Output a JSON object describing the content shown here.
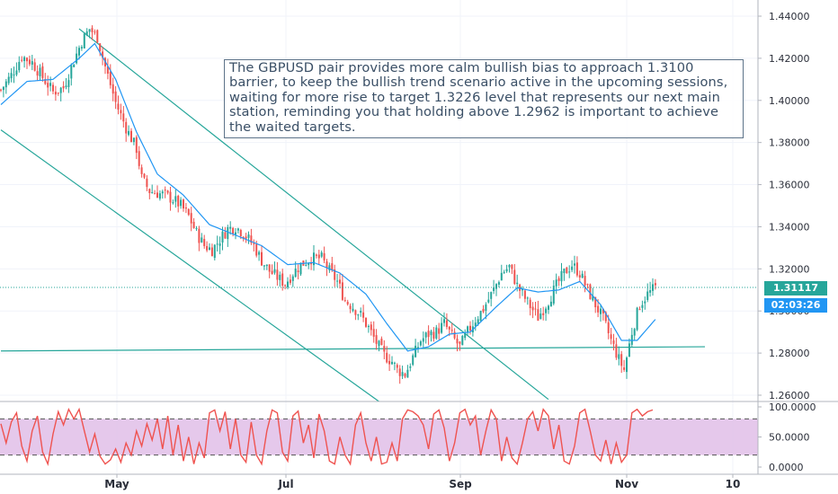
{
  "annotation": "The GBPUSD pair provides more calm bullish bias to approach 1.3100 barrier, to keep the bullish trend scenario active in the upcoming sessions, waiting for more rise to target 1.3226 level that represents our next main station, reminding you that holding above 1.2962 is important to achieve the waited targets.",
  "price_badge": {
    "price": "1.31117",
    "countdown": "02:03:26",
    "color": "#26a69a",
    "timer_color": "#2196f3"
  },
  "colors": {
    "up_candle": "#26a69a",
    "down_candle": "#ef5350",
    "ma_line": "#2196f3",
    "channel": "#26a69a",
    "rsi_line": "#ef5350",
    "rsi_band": "#e1bee7"
  },
  "chart_data": [
    {
      "type": "candlestick",
      "symbol": "GBPUSD",
      "x_ticks": [
        "May",
        "Jul",
        "Sep",
        "Nov",
        "10"
      ],
      "y_ticks": [
        "1.26000",
        "1.28000",
        "1.30000",
        "1.32000",
        "1.34000",
        "1.36000",
        "1.38000",
        "1.40000",
        "1.42000",
        "1.44000"
      ],
      "ylim": [
        1.255,
        1.445
      ],
      "last_price": 1.31117,
      "close_path": [
        [
          0,
          1.405
        ],
        [
          4,
          1.412
        ],
        [
          8,
          1.421
        ],
        [
          12,
          1.418
        ],
        [
          16,
          1.411
        ],
        [
          20,
          1.404
        ],
        [
          24,
          1.406
        ],
        [
          28,
          1.419
        ],
        [
          31,
          1.428
        ],
        [
          34,
          1.434
        ],
        [
          37,
          1.43
        ],
        [
          40,
          1.416
        ],
        [
          44,
          1.399
        ],
        [
          48,
          1.387
        ],
        [
          52,
          1.377
        ],
        [
          54,
          1.363
        ],
        [
          57,
          1.357
        ],
        [
          60,
          1.356
        ],
        [
          63,
          1.355
        ],
        [
          66,
          1.353
        ],
        [
          69,
          1.35
        ],
        [
          72,
          1.345
        ],
        [
          75,
          1.337
        ],
        [
          78,
          1.331
        ],
        [
          81,
          1.329
        ],
        [
          84,
          1.334
        ],
        [
          87,
          1.339
        ],
        [
          90,
          1.34
        ],
        [
          93,
          1.337
        ],
        [
          97,
          1.331
        ],
        [
          100,
          1.324
        ],
        [
          103,
          1.319
        ],
        [
          106,
          1.316
        ],
        [
          109,
          1.313
        ],
        [
          112,
          1.318
        ],
        [
          115,
          1.322
        ],
        [
          119,
          1.325
        ],
        [
          123,
          1.325
        ],
        [
          126,
          1.319
        ],
        [
          129,
          1.314
        ],
        [
          132,
          1.305
        ],
        [
          135,
          1.302
        ],
        [
          138,
          1.298
        ],
        [
          141,
          1.292
        ],
        [
          144,
          1.285
        ],
        [
          147,
          1.279
        ],
        [
          150,
          1.276
        ],
        [
          152,
          1.272
        ],
        [
          155,
          1.27
        ],
        [
          158,
          1.278
        ],
        [
          161,
          1.286
        ],
        [
          164,
          1.289
        ],
        [
          167,
          1.29
        ],
        [
          170,
          1.294
        ],
        [
          173,
          1.288
        ],
        [
          176,
          1.283
        ],
        [
          179,
          1.29
        ],
        [
          182,
          1.296
        ],
        [
          185,
          1.301
        ],
        [
          189,
          1.31
        ],
        [
          192,
          1.318
        ],
        [
          195,
          1.321
        ],
        [
          198,
          1.312
        ],
        [
          202,
          1.304
        ],
        [
          206,
          1.297
        ],
        [
          210,
          1.305
        ],
        [
          213,
          1.312
        ],
        [
          216,
          1.318
        ],
        [
          219,
          1.322
        ],
        [
          222,
          1.318
        ],
        [
          225,
          1.31
        ],
        [
          228,
          1.303
        ],
        [
          231,
          1.296
        ],
        [
          234,
          1.286
        ],
        [
          237,
          1.277
        ],
        [
          239,
          1.272
        ],
        [
          242,
          1.29
        ],
        [
          245,
          1.303
        ],
        [
          248,
          1.308
        ],
        [
          251,
          1.311
        ]
      ],
      "moving_average": [
        [
          0,
          1.398
        ],
        [
          10,
          1.409
        ],
        [
          20,
          1.41
        ],
        [
          30,
          1.42
        ],
        [
          36,
          1.427
        ],
        [
          44,
          1.41
        ],
        [
          52,
          1.385
        ],
        [
          60,
          1.365
        ],
        [
          70,
          1.355
        ],
        [
          80,
          1.341
        ],
        [
          90,
          1.336
        ],
        [
          100,
          1.331
        ],
        [
          110,
          1.322
        ],
        [
          120,
          1.323
        ],
        [
          130,
          1.318
        ],
        [
          140,
          1.308
        ],
        [
          148,
          1.294
        ],
        [
          156,
          1.281
        ],
        [
          164,
          1.283
        ],
        [
          172,
          1.289
        ],
        [
          180,
          1.29
        ],
        [
          190,
          1.302
        ],
        [
          198,
          1.311
        ],
        [
          206,
          1.309
        ],
        [
          214,
          1.31
        ],
        [
          222,
          1.314
        ],
        [
          230,
          1.303
        ],
        [
          238,
          1.286
        ],
        [
          244,
          1.286
        ],
        [
          251,
          1.296
        ]
      ],
      "trendlines": [
        {
          "from": [
            30,
            1.434
          ],
          "to": [
            210,
            1.258
          ]
        },
        {
          "from": [
            0,
            1.386
          ],
          "to": [
            145,
            1.257
          ]
        },
        {
          "from": [
            0,
            1.281
          ],
          "to": [
            270,
            1.283
          ]
        }
      ]
    },
    {
      "type": "line",
      "indicator": "stochastic",
      "y_ticks": [
        "0.0000",
        "50.0000",
        "100.0000"
      ],
      "ylim": [
        0,
        100
      ],
      "band": [
        20,
        80
      ],
      "values": [
        [
          0,
          72
        ],
        [
          2,
          40
        ],
        [
          4,
          75
        ],
        [
          6,
          90
        ],
        [
          8,
          35
        ],
        [
          10,
          10
        ],
        [
          12,
          60
        ],
        [
          14,
          85
        ],
        [
          16,
          25
        ],
        [
          18,
          5
        ],
        [
          20,
          55
        ],
        [
          22,
          92
        ],
        [
          24,
          70
        ],
        [
          26,
          96
        ],
        [
          28,
          80
        ],
        [
          30,
          96
        ],
        [
          32,
          60
        ],
        [
          34,
          25
        ],
        [
          36,
          55
        ],
        [
          38,
          18
        ],
        [
          40,
          5
        ],
        [
          42,
          12
        ],
        [
          44,
          30
        ],
        [
          46,
          8
        ],
        [
          48,
          40
        ],
        [
          50,
          20
        ],
        [
          52,
          60
        ],
        [
          54,
          35
        ],
        [
          56,
          72
        ],
        [
          58,
          45
        ],
        [
          60,
          80
        ],
        [
          62,
          30
        ],
        [
          64,
          85
        ],
        [
          66,
          20
        ],
        [
          68,
          70
        ],
        [
          70,
          10
        ],
        [
          72,
          50
        ],
        [
          74,
          5
        ],
        [
          76,
          40
        ],
        [
          78,
          15
        ],
        [
          80,
          90
        ],
        [
          82,
          95
        ],
        [
          84,
          60
        ],
        [
          86,
          92
        ],
        [
          88,
          30
        ],
        [
          90,
          80
        ],
        [
          92,
          20
        ],
        [
          94,
          8
        ],
        [
          96,
          75
        ],
        [
          98,
          20
        ],
        [
          100,
          5
        ],
        [
          102,
          60
        ],
        [
          104,
          95
        ],
        [
          106,
          90
        ],
        [
          108,
          25
        ],
        [
          110,
          10
        ],
        [
          112,
          85
        ],
        [
          114,
          93
        ],
        [
          116,
          40
        ],
        [
          118,
          70
        ],
        [
          120,
          15
        ],
        [
          122,
          88
        ],
        [
          124,
          60
        ],
        [
          126,
          10
        ],
        [
          128,
          5
        ],
        [
          130,
          50
        ],
        [
          132,
          20
        ],
        [
          134,
          5
        ],
        [
          136,
          70
        ],
        [
          138,
          90
        ],
        [
          140,
          40
        ],
        [
          142,
          10
        ],
        [
          144,
          50
        ],
        [
          146,
          5
        ],
        [
          148,
          8
        ],
        [
          150,
          40
        ],
        [
          152,
          10
        ],
        [
          154,
          80
        ],
        [
          156,
          95
        ],
        [
          158,
          92
        ],
        [
          160,
          85
        ],
        [
          162,
          70
        ],
        [
          164,
          30
        ],
        [
          166,
          88
        ],
        [
          168,
          95
        ],
        [
          170,
          65
        ],
        [
          172,
          10
        ],
        [
          174,
          40
        ],
        [
          176,
          90
        ],
        [
          178,
          96
        ],
        [
          180,
          70
        ],
        [
          182,
          85
        ],
        [
          184,
          20
        ],
        [
          186,
          60
        ],
        [
          188,
          95
        ],
        [
          190,
          80
        ],
        [
          192,
          10
        ],
        [
          194,
          50
        ],
        [
          196,
          15
        ],
        [
          198,
          5
        ],
        [
          200,
          40
        ],
        [
          202,
          80
        ],
        [
          204,
          92
        ],
        [
          206,
          60
        ],
        [
          208,
          96
        ],
        [
          210,
          85
        ],
        [
          212,
          30
        ],
        [
          214,
          70
        ],
        [
          216,
          10
        ],
        [
          218,
          5
        ],
        [
          220,
          35
        ],
        [
          222,
          90
        ],
        [
          224,
          96
        ],
        [
          226,
          60
        ],
        [
          228,
          20
        ],
        [
          230,
          10
        ],
        [
          232,
          45
        ],
        [
          234,
          5
        ],
        [
          236,
          40
        ],
        [
          238,
          8
        ],
        [
          240,
          20
        ],
        [
          242,
          90
        ],
        [
          244,
          96
        ],
        [
          246,
          85
        ],
        [
          248,
          92
        ],
        [
          250,
          95
        ]
      ]
    }
  ]
}
